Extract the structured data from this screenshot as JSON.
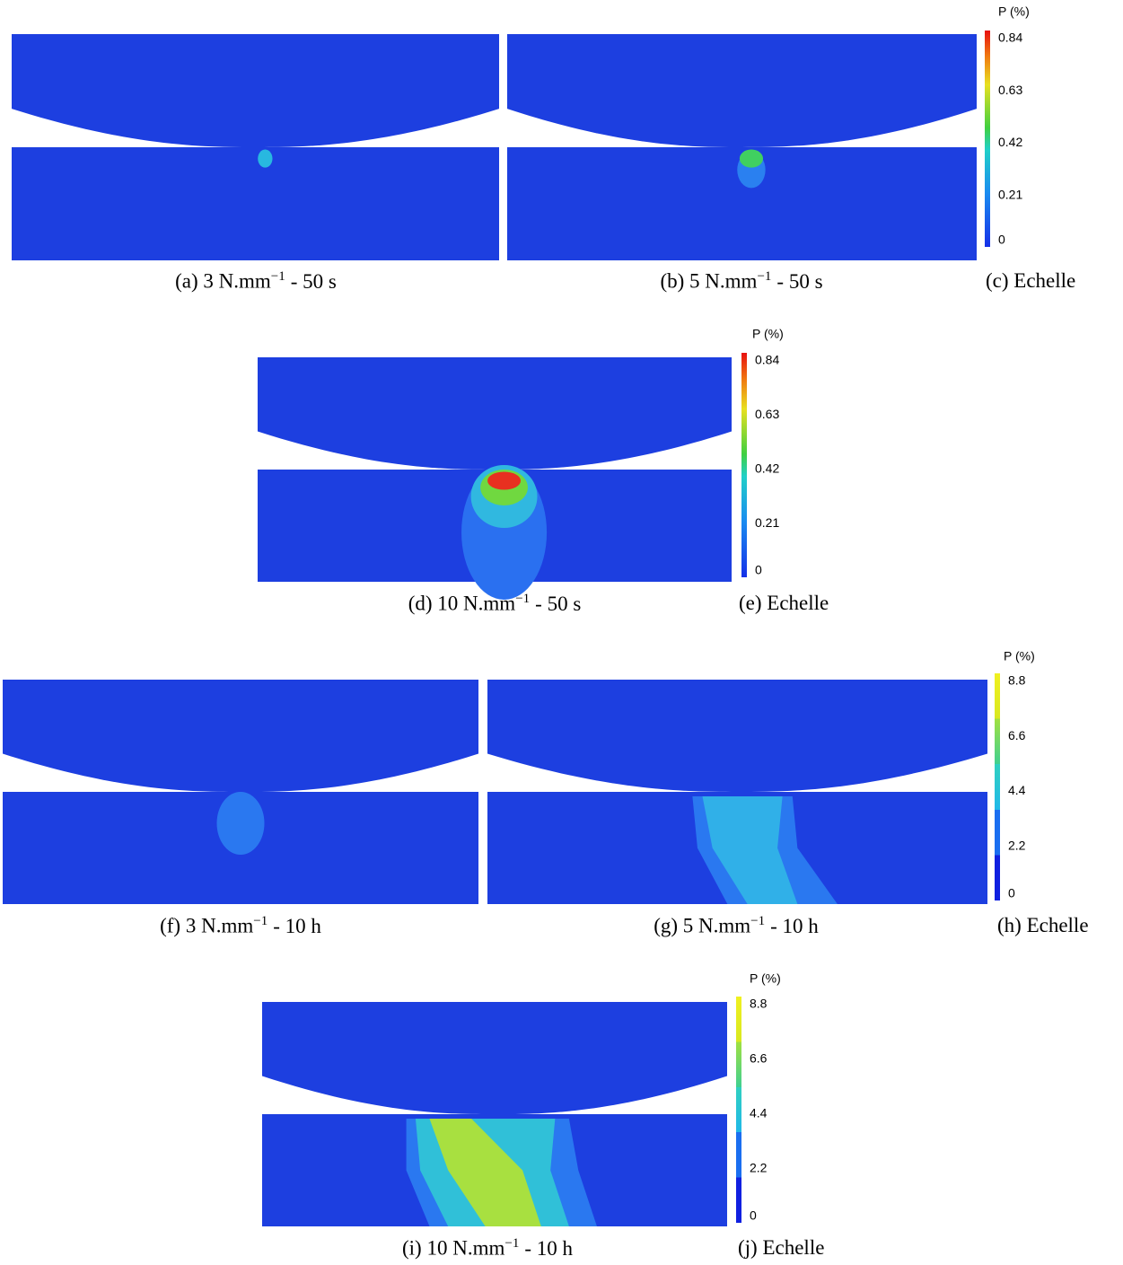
{
  "rows": [
    {
      "panels": [
        {
          "caption": {
            "label": "(a) 3 N.mm",
            "exponent": "−1",
            "suffix": "- 50 s"
          }
        },
        {
          "caption": {
            "label": "(b) 5 N.mm",
            "exponent": "−1",
            "suffix": "- 50 s"
          }
        }
      ],
      "scale": {
        "title": "P (%)",
        "ticks": [
          0.84,
          0.63,
          0.42,
          0.21,
          0
        ]
      },
      "scale_caption": "(c) Echelle"
    },
    {
      "panels": [
        {
          "caption": {
            "label": "(d) 10 N.mm",
            "exponent": "−1",
            "suffix": "- 50 s"
          }
        }
      ],
      "scale": {
        "title": "P (%)",
        "ticks": [
          0.84,
          0.63,
          0.42,
          0.21,
          0
        ]
      },
      "scale_caption": "(e) Echelle"
    },
    {
      "panels": [
        {
          "caption": {
            "label": "(f) 3 N.mm",
            "exponent": "−1",
            "suffix": "- 10 h"
          }
        },
        {
          "caption": {
            "label": "(g) 5 N.mm",
            "exponent": "−1",
            "suffix": "- 10 h"
          }
        }
      ],
      "scale": {
        "title": "P (%)",
        "ticks": [
          8.8,
          6.6,
          4.4,
          2.2,
          0
        ]
      },
      "scale_caption": "(h) Echelle"
    },
    {
      "panels": [
        {
          "caption": {
            "label": "(i) 10 N.mm",
            "exponent": "−1",
            "suffix": "- 10 h"
          }
        }
      ],
      "scale": {
        "title": "P (%)",
        "ticks": [
          8.8,
          6.6,
          4.4,
          2.2,
          0
        ]
      },
      "scale_caption": "(j) Echelle"
    }
  ]
}
